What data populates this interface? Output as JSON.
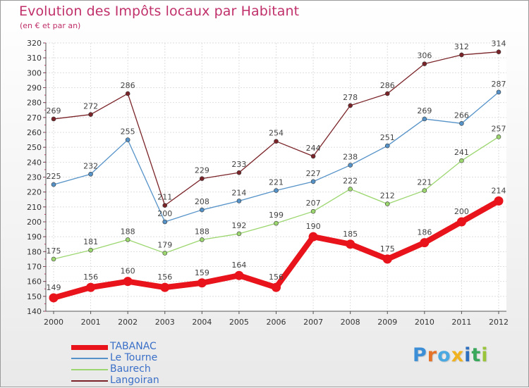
{
  "chart_data": {
    "type": "line",
    "title": "Evolution des Impôts locaux par Habitant",
    "subtitle": "(en € et par an)",
    "xlabel": "",
    "ylabel": "",
    "ylim": [
      140,
      320
    ],
    "ytick_step": 10,
    "categories": [
      "2000",
      "2001",
      "2002",
      "2003",
      "2004",
      "2005",
      "2006",
      "2007",
      "2008",
      "2009",
      "2010",
      "2011",
      "2012"
    ],
    "series": [
      {
        "name": "TABANAC",
        "color": "#e8131b",
        "values": [
          149,
          156,
          160,
          156,
          159,
          164,
          156,
          190,
          185,
          175,
          186,
          200,
          214
        ]
      },
      {
        "name": "Le Tourne",
        "color": "#5592c8",
        "values": [
          225,
          232,
          255,
          200,
          208,
          214,
          221,
          227,
          238,
          251,
          269,
          266,
          287
        ]
      },
      {
        "name": "Baurech",
        "color": "#9bd66e",
        "values": [
          175,
          181,
          188,
          179,
          188,
          192,
          199,
          207,
          222,
          212,
          221,
          241,
          257
        ]
      },
      {
        "name": "Langoiran",
        "color": "#7a2328",
        "values": [
          269,
          272,
          286,
          211,
          229,
          233,
          254,
          244,
          278,
          286,
          306,
          312,
          314
        ]
      }
    ],
    "legend_position": "bottom-left"
  },
  "logo": {
    "letters": [
      "P",
      "r",
      "o",
      "x",
      "i",
      "t",
      "i"
    ],
    "colors": [
      "#3c8fd6",
      "#e5732a",
      "#4aa9e0",
      "#f0b21f",
      "#2f6fbf",
      "#3aa85a",
      "#9ac43a"
    ]
  }
}
